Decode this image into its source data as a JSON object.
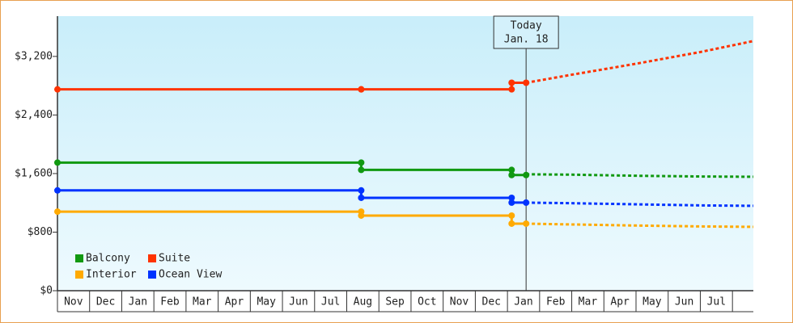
{
  "chart_data": {
    "type": "line",
    "x": [
      0,
      9.45,
      9.45,
      14.13,
      14.13,
      14.58
    ],
    "forecast_x": [
      14.58,
      16,
      18,
      20,
      21.65
    ],
    "xlim": [
      0,
      21.65
    ],
    "x_labels": [
      "Nov",
      "Dec",
      "Jan",
      "Feb",
      "Mar",
      "Apr",
      "May",
      "Jun",
      "Jul",
      "Aug",
      "Sep",
      "Oct",
      "Nov",
      "Dec",
      "Jan",
      "Feb",
      "Mar",
      "Apr",
      "May",
      "Jun",
      "Jul"
    ],
    "ylim": [
      0,
      3750
    ],
    "yticks": [
      {
        "value": 0,
        "label": "$0"
      },
      {
        "value": 800,
        "label": "$800"
      },
      {
        "value": 1600,
        "label": "$1,600"
      },
      {
        "value": 2400,
        "label": "$2,400"
      },
      {
        "value": 3200,
        "label": "$3,200"
      }
    ],
    "series": [
      {
        "name": "Balcony",
        "color": "#119911",
        "values": [
          1750,
          1750,
          1650,
          1650,
          1580,
          1580
        ],
        "forecast_values": [
          1590,
          1585,
          1570,
          1560,
          1556
        ]
      },
      {
        "name": "Suite",
        "color": "#ff3300",
        "values": [
          2750,
          2750,
          2750,
          2750,
          2840,
          2840
        ],
        "forecast_values": [
          2840,
          2950,
          3100,
          3260,
          3410
        ]
      },
      {
        "name": "Interior",
        "color": "#ffaa00",
        "values": [
          1080,
          1080,
          1026,
          1026,
          916,
          916
        ],
        "forecast_values": [
          916,
          905,
          890,
          878,
          872
        ]
      },
      {
        "name": "Ocean View",
        "color": "#0033ff",
        "values": [
          1370,
          1370,
          1269,
          1269,
          1203,
          1203
        ],
        "forecast_values": [
          1203,
          1195,
          1180,
          1165,
          1159
        ]
      }
    ],
    "today": {
      "x": 14.58,
      "lines": [
        "Today",
        "Jan. 18"
      ]
    },
    "legend": "lower left",
    "grid": false
  }
}
